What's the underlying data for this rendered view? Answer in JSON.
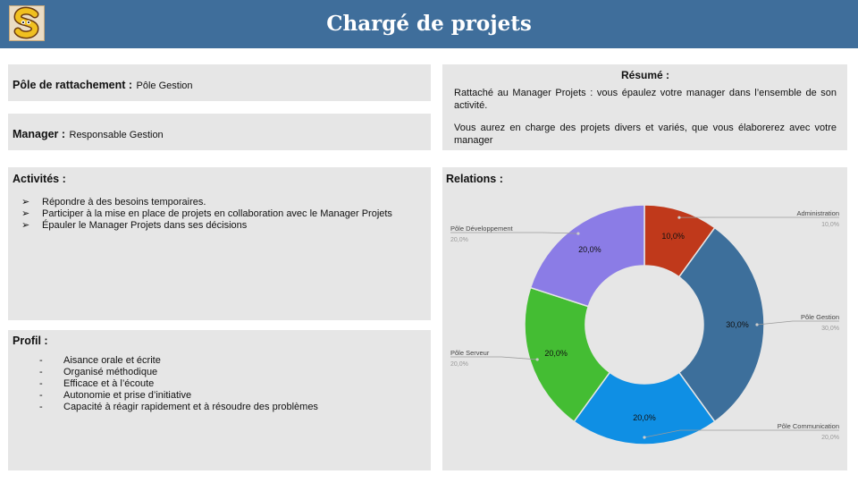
{
  "header": {
    "title": "Chargé de projets",
    "logo_icon": "snake-letter-s-logo"
  },
  "pole": {
    "label": "Pôle de rattachement :",
    "value": "Pôle Gestion"
  },
  "manager": {
    "label": "Manager :",
    "value": "Responsable Gestion"
  },
  "resume": {
    "title": "Résumé :",
    "paragraphs": [
      "Rattaché au Manager Projets : vous épaulez votre manager dans l’ensemble de son activité.",
      "Vous aurez en charge des projets divers et variés, que vous élaborerez avec votre manager"
    ]
  },
  "activites": {
    "title": "Activités :",
    "bullet": "➢",
    "items": [
      "Répondre à des besoins temporaires.",
      "Participer à la mise en place de projets en collaboration avec le Manager Projets",
      "Épauler le Manager Projets dans ses décisions"
    ]
  },
  "profil": {
    "title": "Profil :",
    "bullet": "-",
    "items": [
      "Aisance orale et écrite",
      "Organisé méthodique",
      "Efficace et à l’écoute",
      "Autonomie et prise d’initiative",
      "Capacité à réagir rapidement et à résoudre des problèmes"
    ]
  },
  "relations": {
    "title": "Relations :",
    "chart_data": {
      "type": "pie",
      "donut": true,
      "slices": [
        {
          "name": "Administration",
          "value": 10.0,
          "label": "10,0%",
          "color": "#c0391b"
        },
        {
          "name": "Pôle Gestion",
          "value": 30.0,
          "label": "30,0%",
          "color": "#3d6f9b"
        },
        {
          "name": "Pôle Communication",
          "value": 20.0,
          "label": "20,0%",
          "color": "#0f8fe4"
        },
        {
          "name": "Pôle Serveur",
          "value": 20.0,
          "label": "20,0%",
          "color": "#44bd33"
        },
        {
          "name": "Pôle Développement",
          "value": 20.0,
          "label": "20,0%",
          "color": "#8b7ce6"
        }
      ]
    }
  }
}
